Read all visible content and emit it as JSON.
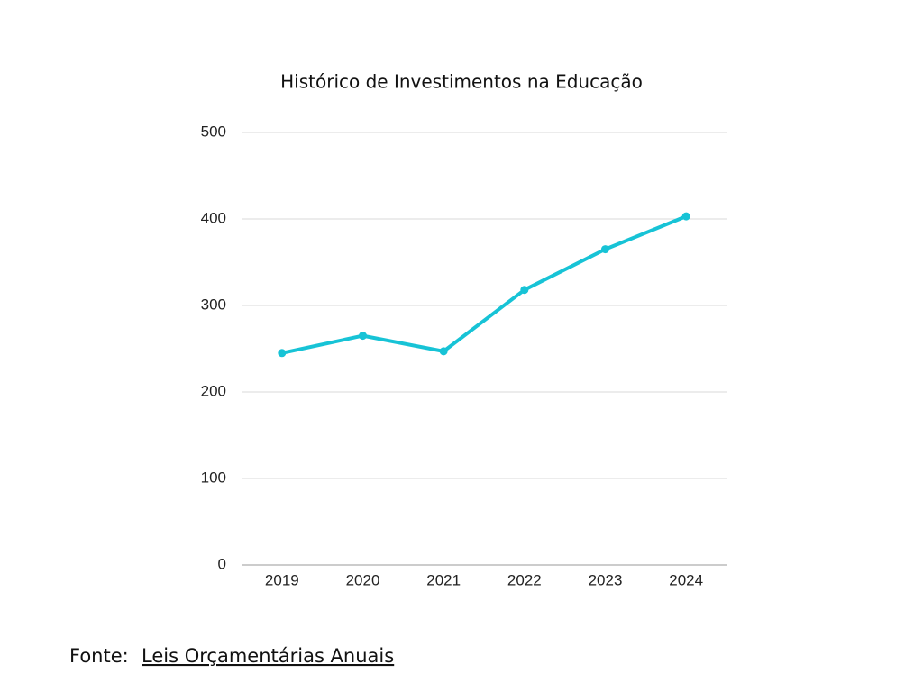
{
  "chart_data": {
    "type": "line",
    "title": "Histórico de Investimentos na Educação",
    "categories": [
      "2019",
      "2020",
      "2021",
      "2022",
      "2023",
      "2024"
    ],
    "values": [
      245,
      265,
      247,
      318,
      365,
      403
    ],
    "color": "#17c3d6",
    "ylim": [
      0,
      500
    ],
    "yticks": [
      0,
      100,
      200,
      300,
      400,
      500
    ],
    "grid": true
  },
  "source": {
    "label": "Fonte:",
    "link": "Leis Orçamentárias Anuais"
  }
}
